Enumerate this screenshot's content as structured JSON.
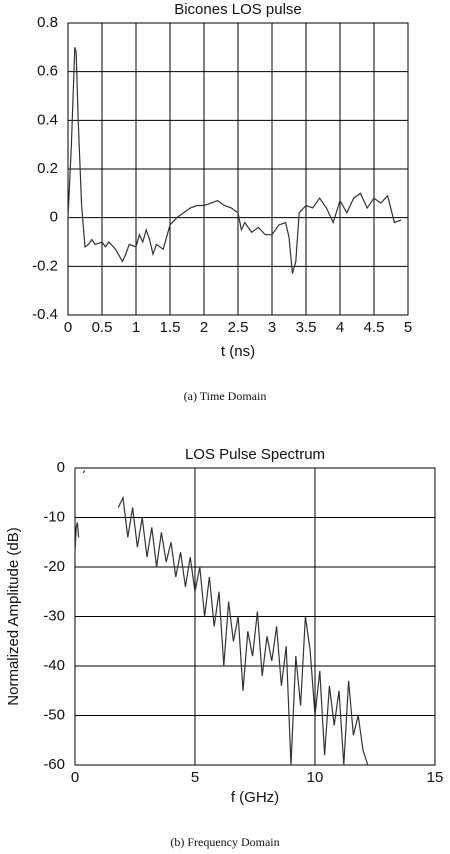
{
  "chart_data": [
    {
      "type": "line",
      "title": "Bicones LOS pulse",
      "xlabel": "t (ns)",
      "caption": "(a) Time Domain",
      "color": "#333333",
      "grid": true,
      "xlim": [
        0,
        5
      ],
      "xticks": [
        0,
        0.5,
        1,
        1.5,
        2,
        2.5,
        3,
        3.5,
        4,
        4.5,
        5
      ],
      "ylim": [
        -0.4,
        0.8
      ],
      "yticks": [
        -0.4,
        -0.2,
        0,
        0.2,
        0.4,
        0.6,
        0.8
      ],
      "x": [
        0,
        0.05,
        0.1,
        0.12,
        0.15,
        0.2,
        0.25,
        0.3,
        0.35,
        0.4,
        0.5,
        0.55,
        0.6,
        0.7,
        0.8,
        0.85,
        0.9,
        1.0,
        1.05,
        1.1,
        1.15,
        1.2,
        1.25,
        1.3,
        1.4,
        1.5,
        1.6,
        1.7,
        1.8,
        1.9,
        2.0,
        2.1,
        2.2,
        2.3,
        2.4,
        2.5,
        2.55,
        2.6,
        2.7,
        2.8,
        2.9,
        3.0,
        3.1,
        3.2,
        3.25,
        3.3,
        3.35,
        3.4,
        3.5,
        3.6,
        3.7,
        3.8,
        3.9,
        4.0,
        4.1,
        4.2,
        4.3,
        4.4,
        4.5,
        4.6,
        4.7,
        4.8,
        4.9
      ],
      "values": [
        0,
        0.3,
        0.7,
        0.68,
        0.4,
        0.05,
        -0.12,
        -0.11,
        -0.09,
        -0.11,
        -0.1,
        -0.12,
        -0.1,
        -0.13,
        -0.18,
        -0.15,
        -0.11,
        -0.12,
        -0.07,
        -0.1,
        -0.05,
        -0.09,
        -0.15,
        -0.11,
        -0.13,
        -0.03,
        0.0,
        0.02,
        0.04,
        0.05,
        0.05,
        0.06,
        0.07,
        0.05,
        0.04,
        0.02,
        -0.05,
        -0.02,
        -0.06,
        -0.04,
        -0.07,
        -0.07,
        -0.03,
        -0.02,
        -0.08,
        -0.23,
        -0.18,
        0.02,
        0.05,
        0.04,
        0.08,
        0.04,
        -0.02,
        0.07,
        0.02,
        0.08,
        0.1,
        0.04,
        0.08,
        0.06,
        0.09,
        -0.02,
        -0.01
      ]
    },
    {
      "type": "line",
      "title": "LOS Pulse Spectrum",
      "xlabel": "f (GHz)",
      "ylabel": "Normalized Amplitude (dB)",
      "caption": "(b) Frequency Domain",
      "color": "#333333",
      "grid": true,
      "xlim": [
        0,
        15
      ],
      "xticks": [
        0,
        5,
        10,
        15
      ],
      "ylim": [
        -60,
        0
      ],
      "yticks": [
        -60,
        -50,
        -40,
        -30,
        -20,
        -10,
        0
      ],
      "x": [
        0,
        0.05,
        0.1,
        0.15,
        0.2,
        0.35,
        0.4,
        0.5,
        1.8,
        2.0,
        2.2,
        2.4,
        2.6,
        2.8,
        3.0,
        3.2,
        3.4,
        3.6,
        3.8,
        4.0,
        4.2,
        4.4,
        4.6,
        4.8,
        5.0,
        5.2,
        5.4,
        5.6,
        5.8,
        6.0,
        6.2,
        6.4,
        6.6,
        6.8,
        7.0,
        7.2,
        7.4,
        7.6,
        7.8,
        8.0,
        8.2,
        8.4,
        8.6,
        8.8,
        9.0,
        9.2,
        9.4,
        9.6,
        9.8,
        10.0,
        10.2,
        10.4,
        10.6,
        10.8,
        11.0,
        11.2,
        11.4,
        11.6,
        11.8,
        12.0,
        12.2
      ],
      "values": [
        -17,
        -12,
        -11,
        -14,
        null,
        -1,
        -0.5,
        null,
        -8,
        -6,
        -14,
        -8,
        -16,
        -10,
        -18,
        -12,
        -20,
        -13,
        -19,
        -15,
        -22,
        -17,
        -24,
        -18,
        -25,
        -20,
        -30,
        -22,
        -32,
        -25,
        -40,
        -27,
        -35,
        -30,
        -45,
        -33,
        -38,
        -29,
        -42,
        -34,
        -39,
        -32,
        -44,
        -36,
        -60,
        -38,
        -48,
        -30,
        -37,
        -50,
        -41,
        -58,
        -44,
        -52,
        -45,
        -60,
        -43,
        -54,
        -50,
        -57,
        -60
      ]
    }
  ]
}
